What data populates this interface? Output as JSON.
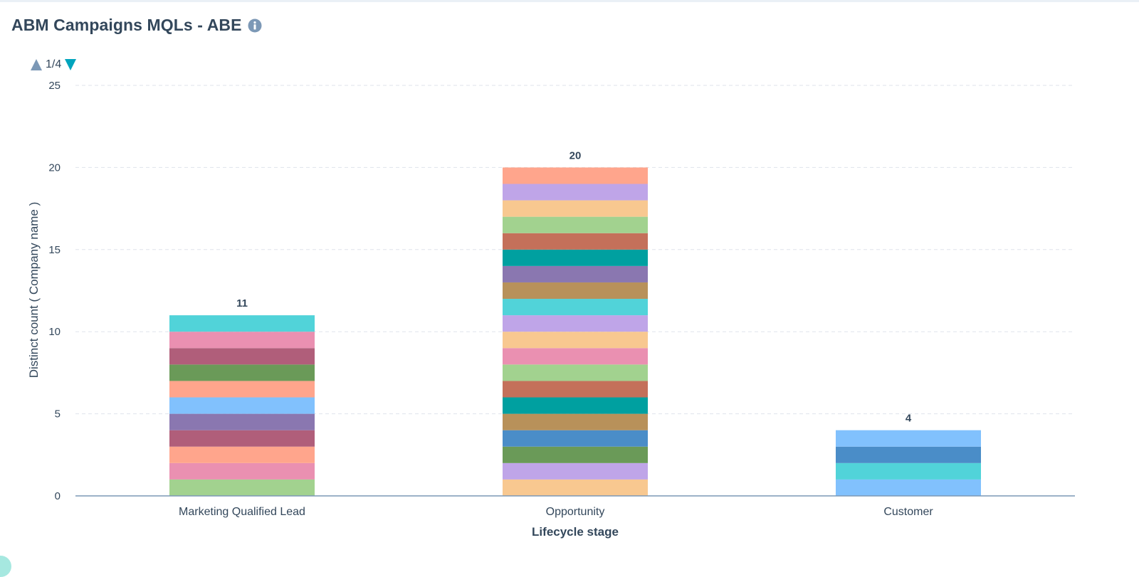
{
  "header": {
    "title": "ABM Campaigns MQLs - ABE",
    "info_icon": "info-icon"
  },
  "pager": {
    "text": "1/4",
    "up_icon": "triangle-up-icon",
    "down_icon": "triangle-down-icon"
  },
  "colors": {
    "up_arrow": "#7c98b6",
    "down_arrow": "#00a4bd",
    "info_icon": "#7c98b6",
    "gridline": "#dfe3eb",
    "axis": "#7c98b6"
  },
  "chart_data": {
    "type": "bar",
    "stacked": true,
    "xlabel": "Lifecycle stage",
    "ylabel": "Distinct count ( Company name )",
    "ylim": [
      0,
      25
    ],
    "yticks": [
      0,
      5,
      10,
      15,
      20,
      25
    ],
    "grid": true,
    "categories": [
      "Marketing Qualified Lead",
      "Opportunity",
      "Customer"
    ],
    "totals": [
      11,
      20,
      4
    ],
    "segments": [
      [
        "#a2d28f",
        "#ea90b1",
        "#ffa58c",
        "#b05e7a",
        "#8a77b0",
        "#81c1fd",
        "#ffa58c",
        "#6a9a58",
        "#b05e7a",
        "#ea90b1",
        "#51d3d9"
      ],
      [
        "#f8c890",
        "#bfa5e8",
        "#6a9a58",
        "#4a8dc8",
        "#b8915a",
        "#00a0a0",
        "#c4705a",
        "#a2d28f",
        "#ea90b1",
        "#f8c890",
        "#bfa5e8",
        "#51d3d9",
        "#b8915a",
        "#8a77b0",
        "#00a0a0",
        "#c4705a",
        "#a2d28f",
        "#f8c890",
        "#bfa5e8",
        "#ffa58c"
      ],
      [
        "#81c1fd",
        "#51d3d9",
        "#4a8dc8",
        "#81c1fd"
      ]
    ]
  }
}
